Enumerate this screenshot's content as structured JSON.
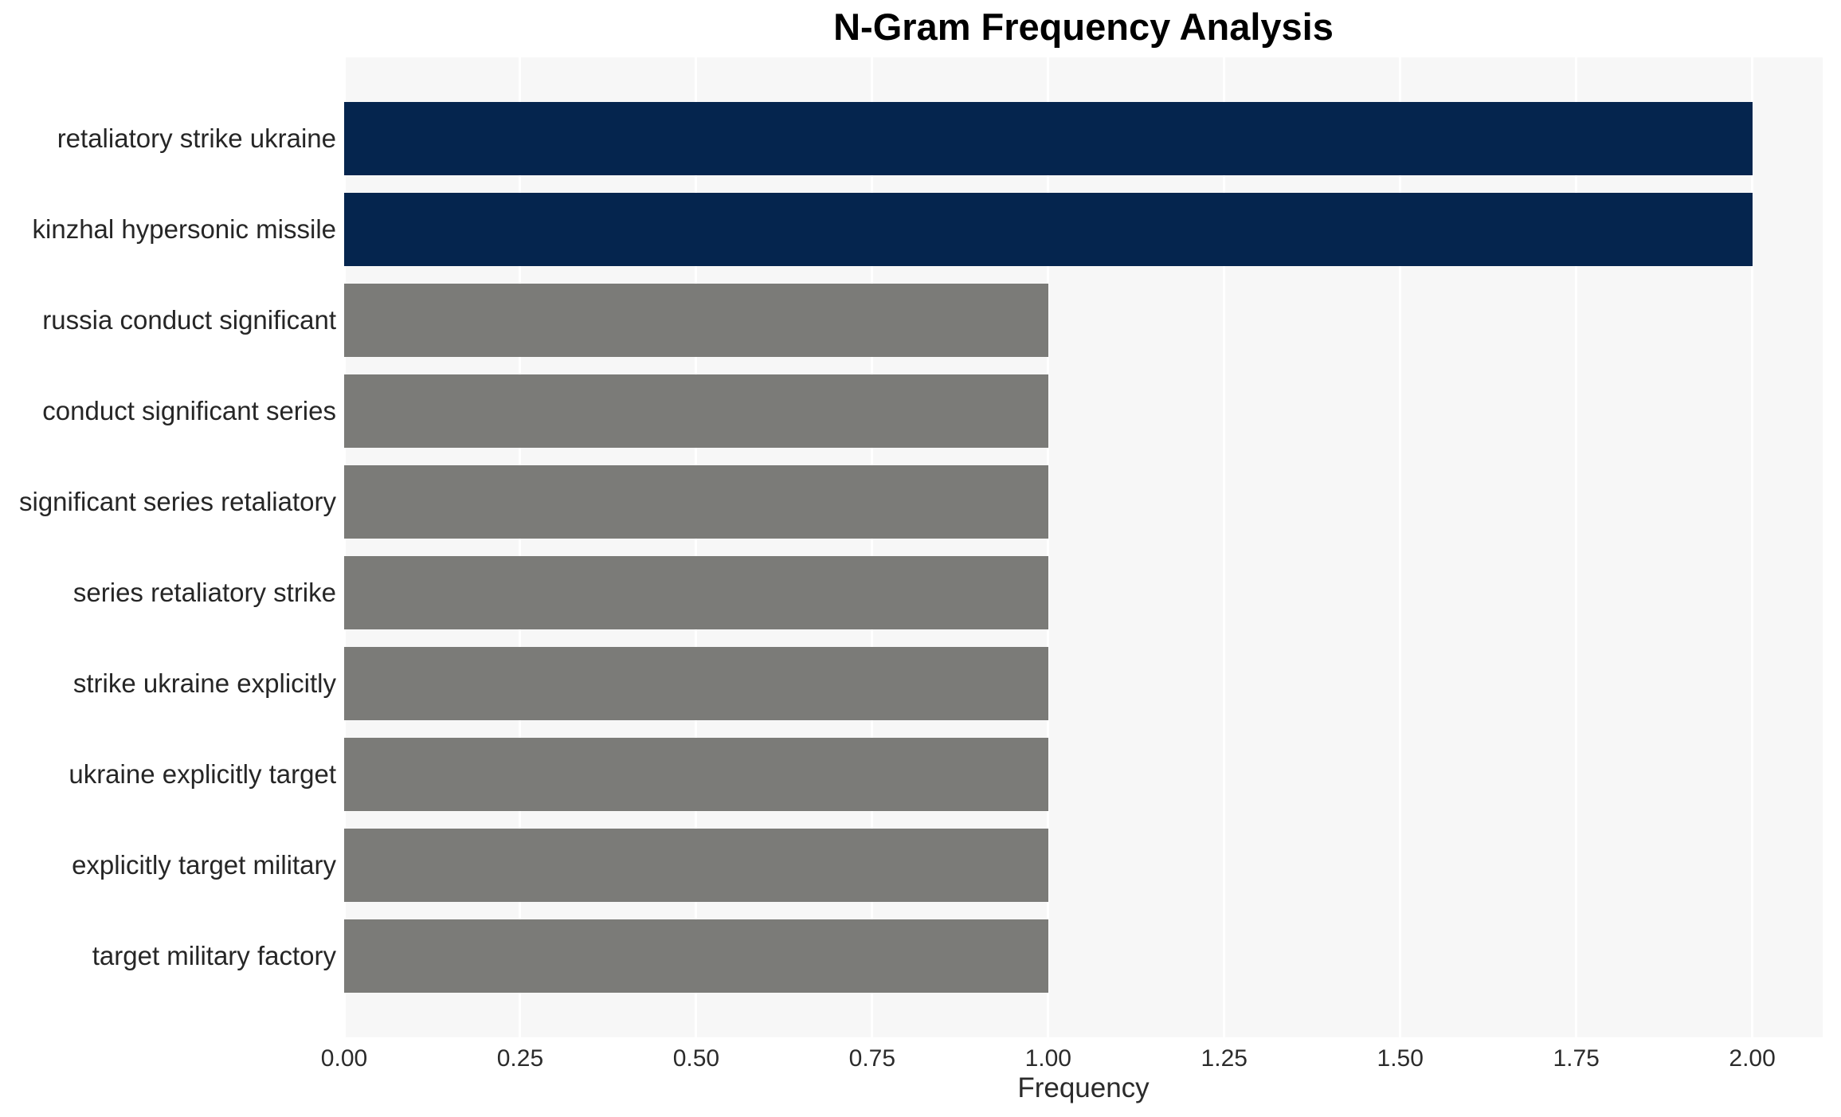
{
  "chart_data": {
    "type": "bar",
    "orientation": "horizontal",
    "title": "N-Gram Frequency Analysis",
    "xlabel": "Frequency",
    "ylabel": "",
    "categories": [
      "retaliatory strike ukraine",
      "kinzhal hypersonic missile",
      "russia conduct significant",
      "conduct significant series",
      "significant series retaliatory",
      "series retaliatory strike",
      "strike ukraine explicitly",
      "ukraine explicitly target",
      "explicitly target military",
      "target military factory"
    ],
    "values": [
      2,
      2,
      1,
      1,
      1,
      1,
      1,
      1,
      1,
      1
    ],
    "bar_colors": [
      "#05254e",
      "#05254e",
      "#7b7b78",
      "#7b7b78",
      "#7b7b78",
      "#7b7b78",
      "#7b7b78",
      "#7b7b78",
      "#7b7b78",
      "#7b7b78"
    ],
    "xlim": [
      0,
      2.1
    ],
    "x_ticks": [
      0,
      0.25,
      0.5,
      0.75,
      1.0,
      1.25,
      1.5,
      1.75,
      2.0
    ],
    "x_tick_labels": [
      "0.00",
      "0.25",
      "0.50",
      "0.75",
      "1.00",
      "1.25",
      "1.50",
      "1.75",
      "2.00"
    ],
    "grid": true,
    "legend": "none",
    "colors": {
      "plot_background": "#f7f7f7",
      "gridline": "#ffffff",
      "title_text": "#000000",
      "label_text": "#262626",
      "tick_text": "#2b2b2b",
      "figure_background": "#ffffff"
    }
  }
}
